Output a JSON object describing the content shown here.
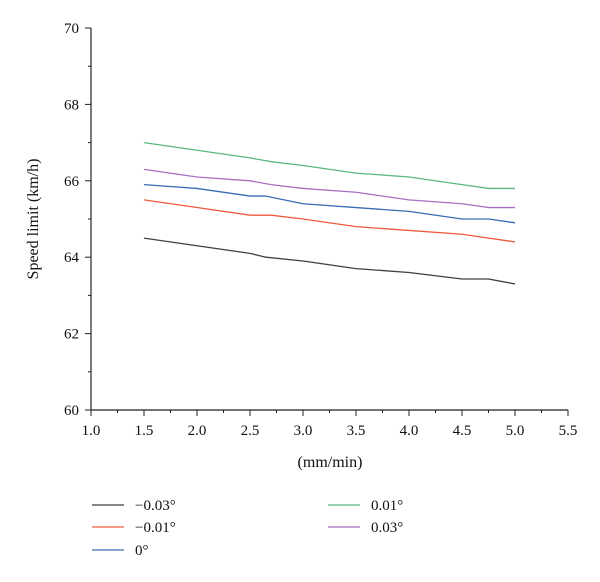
{
  "chart_data": {
    "type": "line",
    "xlabel": "(mm/min)",
    "ylabel": "Speed limit (km/h)",
    "xlim": [
      1.0,
      5.5
    ],
    "ylim": [
      60,
      70
    ],
    "x_ticks": [
      1.0,
      1.5,
      2.0,
      2.5,
      3.0,
      3.5,
      4.0,
      4.5,
      5.0,
      5.5
    ],
    "x_tick_labels": [
      "1.0",
      "1.5",
      "2.0",
      "2.5",
      "3.0",
      "3.5",
      "4.0",
      "4.5",
      "5.0",
      "5.5"
    ],
    "y_ticks": [
      60,
      62,
      64,
      66,
      68,
      70
    ],
    "y_tick_labels": [
      "60",
      "62",
      "64",
      "66",
      "68",
      "70"
    ],
    "grid": false,
    "legend_position": "bottom",
    "series": [
      {
        "name": "−0.03°",
        "color": "#404040",
        "x": [
          1.5,
          2.0,
          2.5,
          2.65,
          3.0,
          3.5,
          4.0,
          4.5,
          4.75,
          5.0
        ],
        "y": [
          64.5,
          64.3,
          64.1,
          64.0,
          63.9,
          63.7,
          63.6,
          63.43,
          63.43,
          63.3
        ]
      },
      {
        "name": "−0.01°",
        "color": "#ef5a3f",
        "x": [
          1.5,
          2.0,
          2.5,
          2.7,
          3.0,
          3.5,
          4.0,
          4.5,
          5.0
        ],
        "y": [
          65.5,
          65.3,
          65.1,
          65.1,
          65.0,
          64.8,
          64.7,
          64.6,
          64.4
        ]
      },
      {
        "name": "0°",
        "color": "#3a6db5",
        "x": [
          1.5,
          2.0,
          2.5,
          2.65,
          3.0,
          3.5,
          4.0,
          4.5,
          4.75,
          5.0
        ],
        "y": [
          65.9,
          65.8,
          65.6,
          65.6,
          65.4,
          65.3,
          65.2,
          65.0,
          65.0,
          64.9
        ]
      },
      {
        "name": "0.01°",
        "color": "#5ab883",
        "x": [
          1.5,
          2.0,
          2.5,
          2.7,
          3.0,
          3.5,
          4.0,
          4.5,
          4.75,
          5.0
        ],
        "y": [
          67.0,
          66.8,
          66.6,
          66.5,
          66.4,
          66.2,
          66.1,
          65.9,
          65.8,
          65.8
        ]
      },
      {
        "name": "0.03°",
        "color": "#a86fc0",
        "x": [
          1.5,
          2.0,
          2.5,
          2.7,
          3.0,
          3.5,
          4.0,
          4.5,
          4.75,
          5.0
        ],
        "y": [
          66.3,
          66.1,
          66.0,
          65.9,
          65.8,
          65.7,
          65.5,
          65.4,
          65.3,
          65.3
        ]
      }
    ]
  }
}
